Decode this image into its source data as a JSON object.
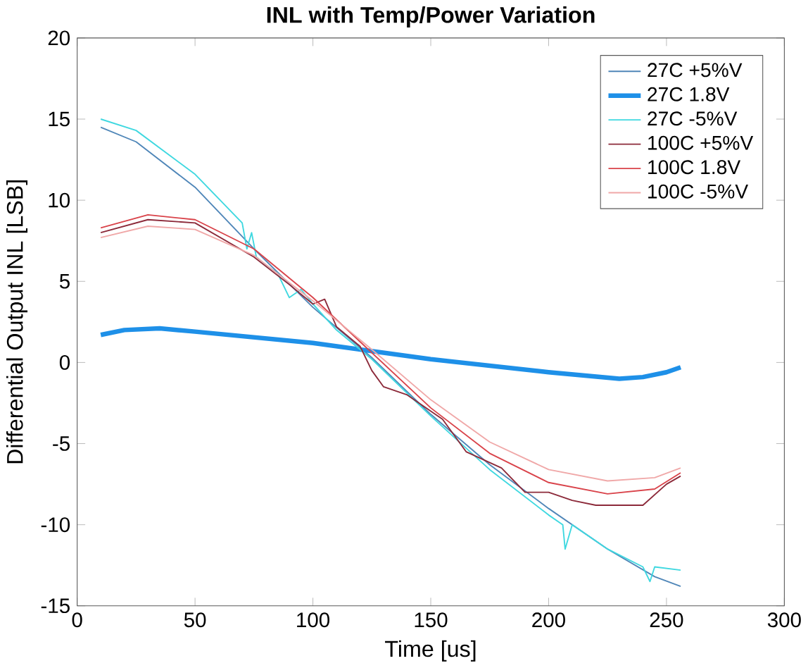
{
  "chart_data": {
    "type": "line",
    "title": "INL with Temp/Power Variation",
    "xlabel": "Time [us]",
    "ylabel": "Differential Output INL [LSB]",
    "xlim": [
      0,
      300
    ],
    "ylim": [
      -15,
      20
    ],
    "xticks": [
      0,
      50,
      100,
      150,
      200,
      250,
      300
    ],
    "yticks": [
      -15,
      -10,
      -5,
      0,
      5,
      10,
      15,
      20
    ],
    "legend": "top right",
    "grid": false,
    "marker": "none",
    "line_style": "solid",
    "series": [
      {
        "name": "27C +5%V",
        "color": "#4f86b8",
        "x": [
          10,
          25,
          50,
          75,
          100,
          125,
          150,
          175,
          200,
          225,
          245,
          256
        ],
        "values": [
          14.5,
          13.6,
          10.8,
          7.0,
          3.4,
          0.3,
          -3.2,
          -6.3,
          -9.0,
          -11.5,
          -13.2,
          -13.8
        ]
      },
      {
        "name": "27C 1.8V",
        "color": "#1e90e8",
        "x": [
          10,
          20,
          35,
          50,
          100,
          150,
          200,
          230,
          240,
          250,
          256
        ],
        "values": [
          1.7,
          2.0,
          2.1,
          1.9,
          1.2,
          0.2,
          -0.6,
          -1.0,
          -0.9,
          -0.6,
          -0.3
        ]
      },
      {
        "name": "27C -5%V",
        "color": "#3fd8e0",
        "x": [
          10,
          25,
          50,
          70,
          72,
          74,
          76,
          80,
          85,
          90,
          95,
          100,
          110,
          125,
          150,
          175,
          200,
          206,
          207,
          210,
          225,
          240,
          243,
          245,
          256
        ],
        "values": [
          15.0,
          14.3,
          11.6,
          8.6,
          7.0,
          8.0,
          6.5,
          6.0,
          5.5,
          4.0,
          4.5,
          3.6,
          2.0,
          0.2,
          -3.3,
          -6.6,
          -9.4,
          -10.0,
          -11.5,
          -10.0,
          -11.5,
          -12.6,
          -13.5,
          -12.6,
          -12.8
        ]
      },
      {
        "name": "100C +5%V",
        "color": "#8c2a3a",
        "x": [
          10,
          30,
          50,
          75,
          90,
          100,
          105,
          110,
          120,
          125,
          130,
          140,
          155,
          160,
          165,
          180,
          190,
          200,
          210,
          220,
          240,
          250,
          256
        ],
        "values": [
          8.0,
          8.8,
          8.6,
          6.5,
          4.8,
          3.6,
          3.9,
          2.2,
          1.0,
          -0.5,
          -1.5,
          -2.0,
          -3.5,
          -4.5,
          -5.5,
          -6.5,
          -8.0,
          -8.0,
          -8.5,
          -8.8,
          -8.8,
          -7.5,
          -7.0
        ]
      },
      {
        "name": "100C 1.8V",
        "color": "#d9434a",
        "x": [
          10,
          30,
          50,
          75,
          100,
          125,
          150,
          175,
          200,
          225,
          245,
          256
        ],
        "values": [
          8.3,
          9.1,
          8.8,
          7.0,
          4.0,
          0.6,
          -2.8,
          -5.6,
          -7.4,
          -8.1,
          -7.8,
          -6.8
        ]
      },
      {
        "name": "100C -5%V",
        "color": "#f0a8a8",
        "x": [
          10,
          30,
          50,
          75,
          100,
          125,
          150,
          175,
          200,
          225,
          245,
          256
        ],
        "values": [
          7.7,
          8.4,
          8.2,
          6.6,
          3.8,
          0.8,
          -2.3,
          -4.9,
          -6.6,
          -7.3,
          -7.1,
          -6.5
        ]
      }
    ]
  }
}
